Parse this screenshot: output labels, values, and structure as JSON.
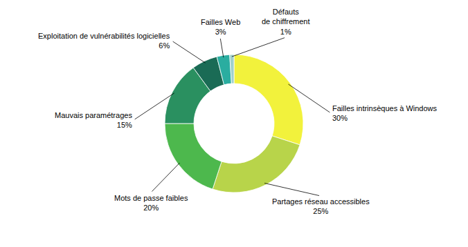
{
  "chart_data": {
    "type": "donut",
    "categories": [
      "Failles intrinsèques à Windows",
      "Partages réseau accessibles",
      "Mots de passe faibles",
      "Mauvais paramétrages",
      "Exploitation de vulnérabilités logicielles",
      "Failles Web",
      "Défauts\nde chiffrement"
    ],
    "values": [
      30,
      25,
      20,
      15,
      6,
      3,
      1
    ],
    "value_labels": [
      "30%",
      "25%",
      "20%",
      "15%",
      "6%",
      "3%",
      "1%"
    ],
    "colors": [
      "#f2f23c",
      "#b8d44a",
      "#4db84d",
      "#2a9060",
      "#1a6b55",
      "#2aada0",
      "#a0d0cc"
    ],
    "data_labels": true
  }
}
